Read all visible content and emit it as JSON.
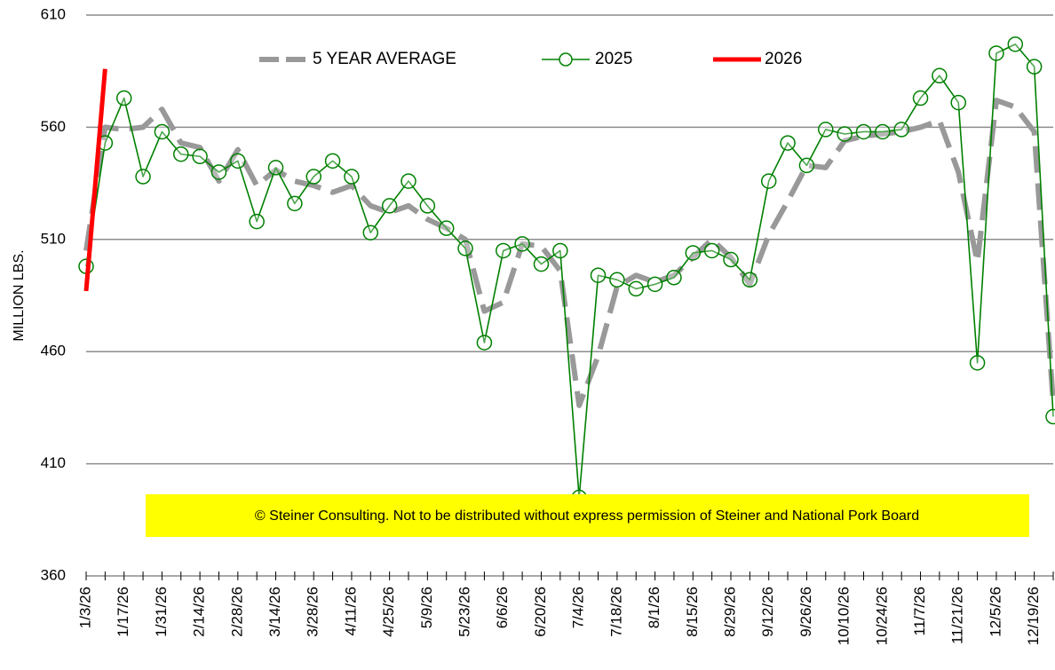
{
  "chart_data": {
    "type": "line",
    "y_label": "MILLION LBS.",
    "annotation": "© Steiner Consulting.  Not to be distributed without express permission of Steiner and National Pork Board",
    "categories": [
      "1/3/26",
      null,
      "1/17/26",
      null,
      "1/31/26",
      null,
      "2/14/26",
      null,
      "2/28/26",
      null,
      "3/14/26",
      null,
      "3/28/26",
      null,
      "4/11/26",
      null,
      "4/25/26",
      null,
      "5/9/26",
      null,
      "5/23/26",
      null,
      "6/6/26",
      null,
      "6/20/26",
      null,
      "7/4/26",
      null,
      "7/18/26",
      null,
      "8/1/26",
      null,
      "8/15/26",
      null,
      "8/29/26",
      null,
      "9/12/26",
      null,
      "9/26/26",
      null,
      "10/10/26",
      null,
      "10/24/26",
      null,
      "11/7/26",
      null,
      "11/21/26",
      null,
      "12/5/26",
      null,
      "12/19/26",
      null
    ],
    "series": [
      {
        "name": "5 YEAR AVERAGE",
        "color": "#999999",
        "style": "dashed",
        "values": [
          505,
          560,
          559,
          560,
          568,
          553,
          551,
          536,
          550,
          534,
          541,
          536,
          534,
          531,
          534,
          525,
          522,
          525,
          519,
          515,
          510,
          478,
          482,
          508,
          507,
          496,
          436,
          458,
          489,
          494,
          491,
          494,
          502,
          510,
          502,
          490,
          512,
          527,
          543,
          542,
          554,
          556,
          557,
          558,
          560,
          563,
          540,
          500,
          572,
          569,
          558,
          437
        ]
      },
      {
        "name": "2025",
        "color": "#008000",
        "style": "marker",
        "values": [
          498,
          553,
          573,
          538,
          558,
          548,
          547,
          540,
          545,
          518,
          542,
          526,
          538,
          545,
          538,
          513,
          525,
          536,
          525,
          515,
          506,
          464,
          505,
          508,
          499,
          505,
          395,
          494,
          492,
          488,
          490,
          493,
          504,
          505,
          501,
          492,
          536,
          553,
          543,
          559,
          557,
          558,
          558,
          559,
          573,
          583,
          571,
          455,
          593,
          597,
          587,
          431
        ]
      },
      {
        "name": "2026",
        "color": "#ff0000",
        "style": "solid",
        "values": [
          487,
          586,
          null,
          null,
          null,
          null,
          null,
          null,
          null,
          null,
          null,
          null,
          null,
          null,
          null,
          null,
          null,
          null,
          null,
          null,
          null,
          null,
          null,
          null,
          null,
          null,
          null,
          null,
          null,
          null,
          null,
          null,
          null,
          null,
          null,
          null,
          null,
          null,
          null,
          null,
          null,
          null,
          null,
          null,
          null,
          null,
          null,
          null,
          null,
          null,
          null,
          null
        ]
      }
    ],
    "ylim": [
      360,
      610
    ],
    "yticks": [
      360,
      410,
      460,
      510,
      560,
      610
    ],
    "grid": true,
    "legend": "top"
  }
}
